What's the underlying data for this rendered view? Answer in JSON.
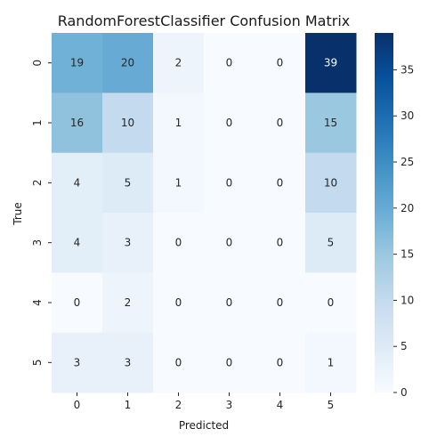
{
  "chart_data": {
    "type": "heatmap",
    "title": "RandomForestClassifier Confusion Matrix",
    "xlabel": "Predicted",
    "ylabel": "True",
    "x_categories": [
      "0",
      "1",
      "2",
      "3",
      "4",
      "5"
    ],
    "y_categories": [
      "0",
      "1",
      "2",
      "3",
      "4",
      "5"
    ],
    "values": [
      [
        19,
        20,
        2,
        0,
        0,
        39
      ],
      [
        16,
        10,
        1,
        0,
        0,
        15
      ],
      [
        4,
        5,
        1,
        0,
        0,
        10
      ],
      [
        4,
        3,
        0,
        0,
        0,
        5
      ],
      [
        0,
        2,
        0,
        0,
        0,
        0
      ],
      [
        3,
        3,
        0,
        0,
        0,
        1
      ]
    ],
    "colormap": "Blues",
    "colorbar": {
      "min": 0,
      "max": 39,
      "ticks": [
        0,
        5,
        10,
        15,
        20,
        25,
        30,
        35
      ]
    }
  }
}
